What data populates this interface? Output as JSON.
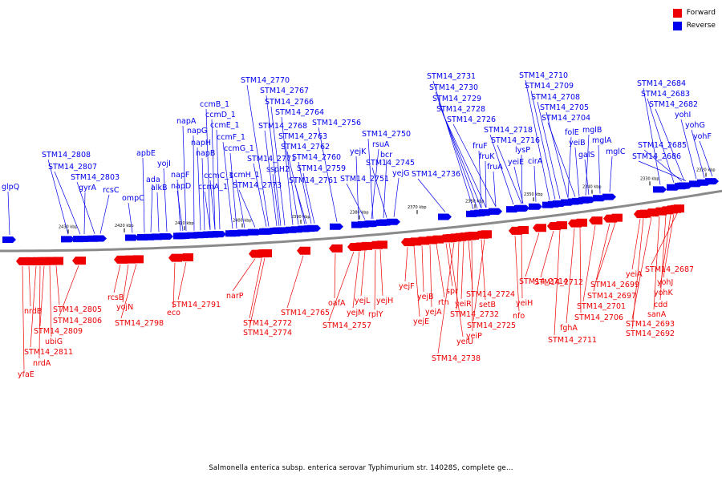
{
  "caption": "Salmonella enterica subsp. enterica serovar Typhimurium str. 14028S, complete ge...",
  "legend": {
    "forward_label": "Forward",
    "reverse_label": "Reverse"
  },
  "colors": {
    "forward": "#ee0000",
    "reverse": "#0000ee",
    "backbone": "#8a8a8a"
  },
  "ticks": [
    "2430 kbp",
    "2420 kbp",
    "2410 kbp",
    "2400 kbp",
    "2390 kbp",
    "2380 kbp",
    "2370 kbp",
    "2360 kbp",
    "2350 kbp",
    "2340 kbp",
    "2330 kbp",
    "2320 kbp"
  ],
  "reverse_genes": [
    "glpQ",
    "STM14_2808",
    "STM14_2807",
    "STM14_2803",
    "gyrA",
    "rcsC",
    "apbE",
    "ompC",
    "ada",
    "alkB",
    "yojI",
    "napA",
    "napF",
    "napD",
    "napG",
    "napH",
    "napB",
    "ccmB_1",
    "ccmD_1",
    "ccmE_1",
    "ccmC_1",
    "ccmA_1",
    "ccmF_1",
    "ccmG_1",
    "ccmH_1",
    "STM14_2773",
    "STM14_2771",
    "STM14_2770",
    "STM14_2767",
    "STM14_2766",
    "STM14_2764",
    "STM14_2768",
    "STM14_2763",
    "STM14_2762",
    "STM14_2760",
    "STM14_2759",
    "STM14_2761",
    "sspH2",
    "STM14_2756",
    "yejK",
    "STM14_2750",
    "rsuA",
    "bcr",
    "STM14_2745",
    "STM14_2751",
    "yejG",
    "STM14_2736",
    "STM14_2731",
    "STM14_2730",
    "STM14_2729",
    "STM14_2728",
    "STM14_2726",
    "fruF",
    "fruK",
    "fruA",
    "STM14_2718",
    "STM14_2716",
    "lysP",
    "yeiE",
    "cirA",
    "STM14_2710",
    "STM14_2709",
    "STM14_2708",
    "STM14_2705",
    "STM14_2704",
    "folE",
    "yeiB",
    "mglB",
    "galS",
    "mglA",
    "mglC",
    "STM14_2684",
    "STM14_2683",
    "STM14_2682",
    "yohI",
    "yohG",
    "yohF",
    "STM14_2685",
    "STM14_2686"
  ],
  "forward_genes": [
    "nrdB",
    "yfaE",
    "STM14_2811",
    "nrdA",
    "STM14_2809",
    "ubiG",
    "STM14_2805",
    "STM14_2806",
    "rcsB",
    "yojN",
    "STM14_2798",
    "eco",
    "STM14_2791",
    "narP",
    "STM14_2772",
    "STM14_2774",
    "STM14_2765",
    "oafA",
    "STM14_2757",
    "yejM",
    "yejL",
    "rplY",
    "yejH",
    "yejF",
    "yejE",
    "yejB",
    "yejA",
    "rtn",
    "spr",
    "yeiU",
    "STM14_2738",
    "STM14_2732",
    "yeiR",
    "STM14_2724",
    "setB",
    "STM14_2725",
    "yeiP",
    "yeiH",
    "STM14_2714",
    "nfo",
    "STM14_2712",
    "STM14_2711",
    "fghA",
    "STM14_2706",
    "STM14_2701",
    "STM14_2699",
    "STM14_2697",
    "yeiA",
    "STM14_2692",
    "STM14_2693",
    "sanA",
    "cdd",
    "yohK",
    "yohJ",
    "STM14_2687"
  ]
}
